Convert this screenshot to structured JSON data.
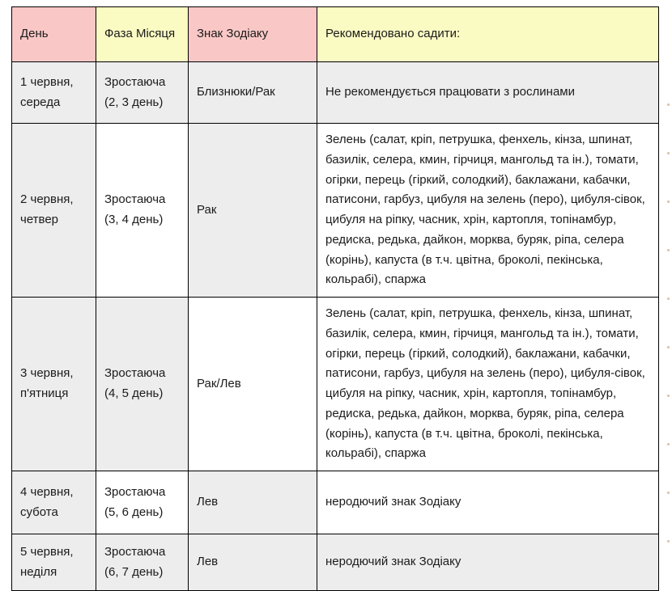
{
  "colors": {
    "pink": "#f9c8c6",
    "yellow": "#fafac3",
    "gray": "#ededed",
    "white": "#ffffff",
    "border": "#000000",
    "text": "#1b1b1b",
    "edge_artifact": "#cda47e"
  },
  "table": {
    "headers": [
      {
        "label": "День",
        "bg": "pink"
      },
      {
        "label": "Фаза Місяця",
        "bg": "yellow"
      },
      {
        "label": "Знак Зодіаку",
        "bg": "pink"
      },
      {
        "label": "Рекомендовано садити:",
        "bg": "yellow"
      }
    ],
    "rows": [
      {
        "day": "1 червня, середа",
        "phase": "Зростаюча (2, 3 день)",
        "zodiac": "Близнюки/Рак",
        "recommendation": "Не рекомендується працювати з рослинами",
        "cell_bgs": [
          "gray",
          "gray",
          "gray",
          "gray"
        ]
      },
      {
        "day": "2 червня, четвер",
        "phase": "Зростаюча (3, 4 день)",
        "zodiac": "Рак",
        "recommendation": "Зелень (салат, кріп, петрушка, фенхель, кінза, шпинат, базилік, селера, кмин, гірчиця, мангольд та ін.), томати, огірки, перець (гіркий, солодкий), баклажани, кабачки, патисони, гарбуз, цибуля на зелень (перо), цибуля-сівок, цибуля на ріпку, часник, хрін, картопля, топінамбур, редиска, редька, дайкон, морква, буряк, ріпа, селера (корінь), капуста (в т.ч. цвітна, броколі, пекінська, кольрабі), спаржа",
        "cell_bgs": [
          "gray",
          "white",
          "gray",
          "white"
        ]
      },
      {
        "day": "3 червня, п'ятниця",
        "phase": "Зростаюча (4, 5 день)",
        "zodiac": "Рак/Лев",
        "recommendation": "Зелень (салат, кріп, петрушка, фенхель, кінза, шпинат, базилік, селера, кмин, гірчиця, мангольд та ін.), томати, огірки, перець (гіркий, солодкий), баклажани, кабачки, патисони, гарбуз, цибуля на зелень (перо), цибуля-сівок, цибуля на ріпку, часник, хрін, картопля, топінамбур, редиска, редька, дайкон, морква, буряк, ріпа, селера (корінь), капуста (в т.ч. цвітна, броколі, пекінська, кольрабі), спаржа",
        "cell_bgs": [
          "gray",
          "gray",
          "white",
          "white"
        ]
      },
      {
        "day": "4 червня, субота",
        "phase": "Зростаюча (5, 6 день)",
        "zodiac": "Лев",
        "recommendation": "неродючий знак Зодіаку",
        "cell_bgs": [
          "gray",
          "white",
          "gray",
          "white"
        ]
      },
      {
        "day": "5 червня, неділя",
        "phase": "Зростаюча (6, 7 день)",
        "zodiac": "Лев",
        "recommendation": "неродючий знак Зодіаку",
        "cell_bgs": [
          "gray",
          "gray",
          "gray",
          "gray"
        ]
      }
    ]
  }
}
